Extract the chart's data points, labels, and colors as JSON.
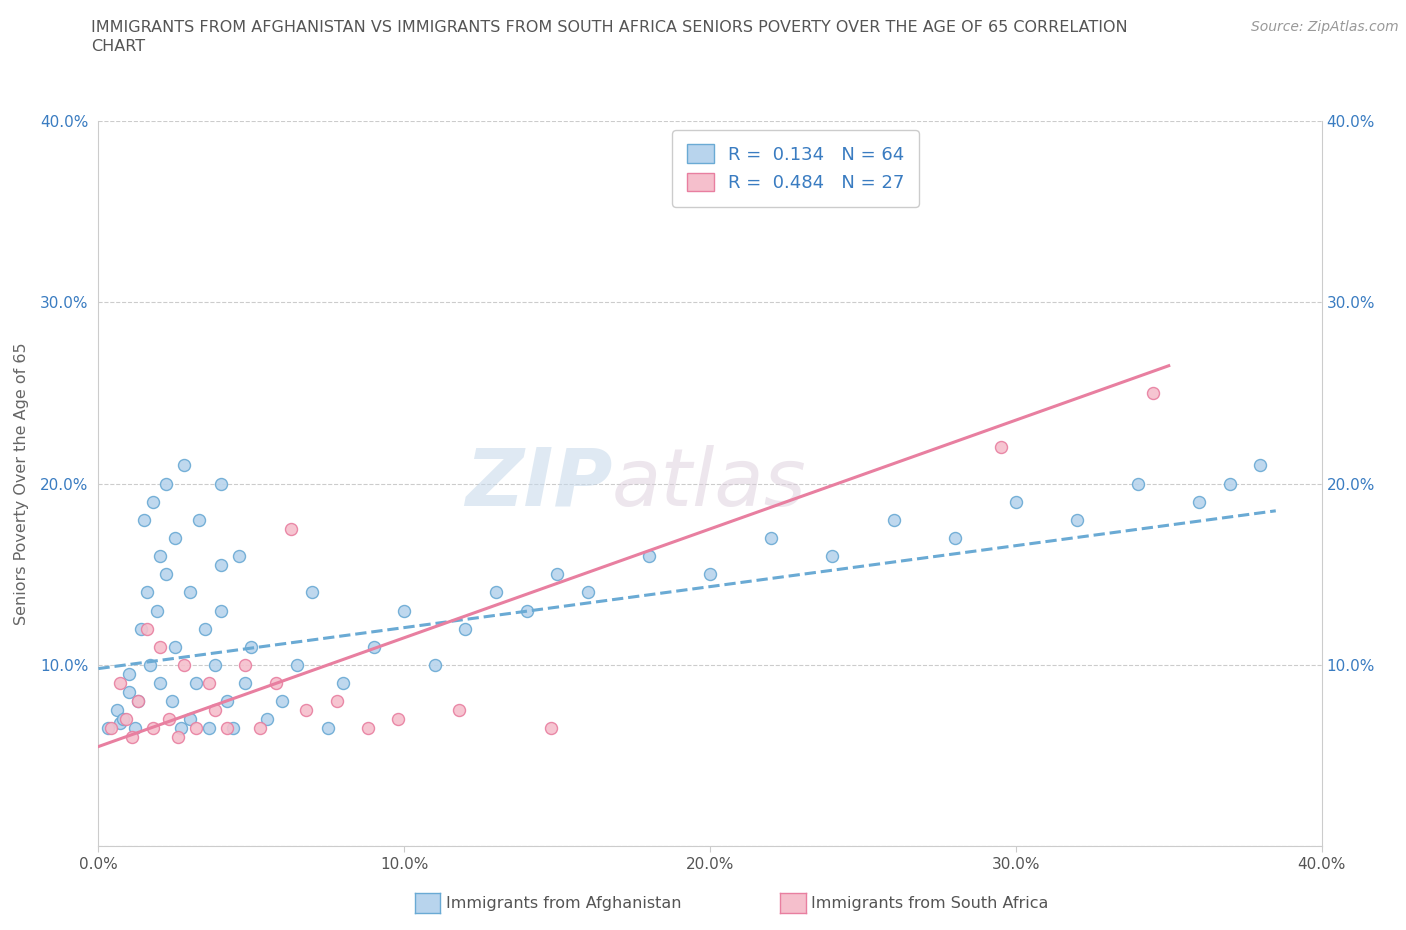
{
  "title_line1": "IMMIGRANTS FROM AFGHANISTAN VS IMMIGRANTS FROM SOUTH AFRICA SENIORS POVERTY OVER THE AGE OF 65 CORRELATION",
  "title_line2": "CHART",
  "source_text": "Source: ZipAtlas.com",
  "ylabel": "Seniors Poverty Over the Age of 65",
  "xlim": [
    0.0,
    0.4
  ],
  "ylim": [
    0.0,
    0.4
  ],
  "xtick_vals": [
    0.0,
    0.1,
    0.2,
    0.3,
    0.4
  ],
  "ytick_vals": [
    0.0,
    0.1,
    0.2,
    0.3,
    0.4
  ],
  "xtick_labels": [
    "0.0%",
    "10.0%",
    "20.0%",
    "30.0%",
    "40.0%"
  ],
  "ytick_labels": [
    "",
    "10.0%",
    "20.0%",
    "30.0%",
    "40.0%"
  ],
  "afghanistan_fill": "#b8d4ed",
  "afghanistan_edge": "#6aaad4",
  "south_africa_fill": "#f5bfcc",
  "south_africa_edge": "#e87fa0",
  "r_afghanistan": "0.134",
  "n_afghanistan": "64",
  "r_south_africa": "0.484",
  "n_south_africa": "27",
  "legend_text_color": "#3a7cc1",
  "watermark_part1": "ZIP",
  "watermark_part2": "atlas",
  "afghanistan_scatter_x": [
    0.003,
    0.006,
    0.007,
    0.008,
    0.01,
    0.01,
    0.012,
    0.013,
    0.014,
    0.015,
    0.016,
    0.017,
    0.018,
    0.019,
    0.02,
    0.02,
    0.022,
    0.022,
    0.024,
    0.025,
    0.025,
    0.027,
    0.028,
    0.03,
    0.03,
    0.032,
    0.033,
    0.035,
    0.036,
    0.038,
    0.04,
    0.04,
    0.042,
    0.044,
    0.046,
    0.048,
    0.05,
    0.055,
    0.06,
    0.065,
    0.07,
    0.075,
    0.08,
    0.09,
    0.1,
    0.11,
    0.12,
    0.13,
    0.14,
    0.15,
    0.16,
    0.18,
    0.2,
    0.22,
    0.24,
    0.26,
    0.28,
    0.3,
    0.32,
    0.34,
    0.36,
    0.37,
    0.38,
    0.04
  ],
  "afghanistan_scatter_y": [
    0.065,
    0.075,
    0.068,
    0.07,
    0.085,
    0.095,
    0.065,
    0.08,
    0.12,
    0.18,
    0.14,
    0.1,
    0.19,
    0.13,
    0.09,
    0.16,
    0.15,
    0.2,
    0.08,
    0.11,
    0.17,
    0.065,
    0.21,
    0.07,
    0.14,
    0.09,
    0.18,
    0.12,
    0.065,
    0.1,
    0.13,
    0.2,
    0.08,
    0.065,
    0.16,
    0.09,
    0.11,
    0.07,
    0.08,
    0.1,
    0.14,
    0.065,
    0.09,
    0.11,
    0.13,
    0.1,
    0.12,
    0.14,
    0.13,
    0.15,
    0.14,
    0.16,
    0.15,
    0.17,
    0.16,
    0.18,
    0.17,
    0.19,
    0.18,
    0.2,
    0.19,
    0.2,
    0.21,
    0.155
  ],
  "south_africa_scatter_x": [
    0.004,
    0.007,
    0.009,
    0.011,
    0.013,
    0.016,
    0.018,
    0.02,
    0.023,
    0.026,
    0.028,
    0.032,
    0.036,
    0.038,
    0.042,
    0.048,
    0.053,
    0.058,
    0.063,
    0.068,
    0.078,
    0.088,
    0.098,
    0.118,
    0.148,
    0.295,
    0.345
  ],
  "south_africa_scatter_y": [
    0.065,
    0.09,
    0.07,
    0.06,
    0.08,
    0.12,
    0.065,
    0.11,
    0.07,
    0.06,
    0.1,
    0.065,
    0.09,
    0.075,
    0.065,
    0.1,
    0.065,
    0.09,
    0.175,
    0.075,
    0.08,
    0.065,
    0.07,
    0.075,
    0.065,
    0.22,
    0.25
  ],
  "afg_trendline_x": [
    0.0,
    0.385
  ],
  "afg_trendline_y": [
    0.098,
    0.185
  ],
  "sa_trendline_x": [
    0.0,
    0.35
  ],
  "sa_trendline_y": [
    0.055,
    0.265
  ],
  "grid_color": "#cccccc",
  "bottom_legend_afg": "Immigrants from Afghanistan",
  "bottom_legend_sa": "Immigrants from South Africa",
  "marker_size": 75
}
